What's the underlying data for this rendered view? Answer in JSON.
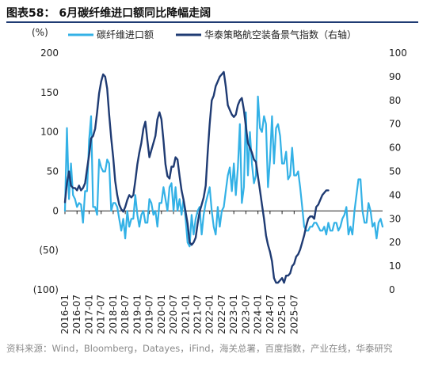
{
  "figure_title": "图表58：  6月碳纤维进口额同比降幅走阔",
  "source_text": "资料来源：Wind，Bloomberg，Datayes，iFind，海关总署，百度指数，产业在线，华泰研究",
  "colors": {
    "series1": "#33b1e6",
    "series2": "#1f3b73",
    "title_rule": "#1f3b73"
  },
  "chart_data": {
    "type": "line",
    "y_left_label": "(%)",
    "y_left_range": [
      -100,
      200
    ],
    "y_left_ticks": [
      "200",
      "150",
      "100",
      "50",
      "0",
      "(50)",
      "(100)"
    ],
    "y_left_tick_values": [
      200,
      150,
      100,
      50,
      0,
      -50,
      -100
    ],
    "y_right_range": [
      0,
      100
    ],
    "y_right_ticks": [
      "100",
      "90",
      "80",
      "70",
      "60",
      "50",
      "40",
      "30",
      "20",
      "10",
      "0"
    ],
    "y_right_tick_values": [
      100,
      90,
      80,
      70,
      60,
      50,
      40,
      30,
      20,
      10,
      0
    ],
    "x_tick_labels": [
      "2016-01",
      "2016-07",
      "2017-01",
      "2017-07",
      "2018-01",
      "2018-07",
      "2019-01",
      "2019-07",
      "2020-01",
      "2020-07",
      "2021-01",
      "2021-07",
      "2022-01",
      "2022-07",
      "2023-01",
      "2023-07",
      "2024-01",
      "2024-07",
      "2025-01",
      "2025-07"
    ],
    "x_start": "2016-01",
    "legend_placement": "top",
    "series": [
      {
        "name": "碳纤维进口额",
        "axis": "left",
        "values": [
          0,
          105,
          15,
          60,
          20,
          15,
          5,
          10,
          8,
          -15,
          25,
          25,
          90,
          120,
          5,
          5,
          -5,
          65,
          55,
          50,
          50,
          65,
          60,
          0,
          10,
          10,
          5,
          -10,
          -25,
          -10,
          -35,
          0,
          -20,
          -10,
          -10,
          20,
          -5,
          -20,
          -5,
          0,
          -15,
          -15,
          15,
          10,
          -5,
          0,
          -20,
          10,
          10,
          30,
          15,
          0,
          30,
          35,
          0,
          30,
          0,
          15,
          -5,
          15,
          -10,
          -40,
          -45,
          -5,
          -30,
          -10,
          0,
          5,
          -30,
          -5,
          10,
          20,
          30,
          0,
          -20,
          -30,
          5,
          -20,
          0,
          5,
          25,
          45,
          55,
          25,
          60,
          20,
          55,
          110,
          10,
          30,
          125,
          45,
          100,
          60,
          35,
          45,
          145,
          105,
          100,
          120,
          110,
          30,
          65,
          120,
          60,
          105,
          110,
          95,
          60,
          60,
          75,
          40,
          45,
          80,
          45,
          45,
          50,
          30,
          5,
          -20,
          -25,
          -25,
          -20,
          -20,
          -15,
          -15,
          -20,
          -25,
          -25,
          -20,
          -30,
          -15,
          -25,
          -25,
          -15,
          -15,
          -25,
          -20,
          -10,
          -5,
          5,
          -30,
          -20,
          -30,
          0,
          20,
          40,
          40,
          0,
          -15,
          -15,
          10,
          0,
          -20,
          -15,
          -35,
          -15,
          -10,
          -20
        ],
        "line_width": 2.2
      },
      {
        "name": "华泰策略航空装备景气指数（右轴）",
        "axis": "right",
        "values": [
          37,
          45,
          50,
          44,
          43,
          43,
          42,
          44,
          42,
          43,
          45,
          51,
          57,
          64,
          65,
          68,
          75,
          83,
          88,
          91,
          90,
          85,
          74,
          64,
          56,
          46,
          40,
          36,
          34,
          33,
          35,
          38,
          40,
          39,
          40,
          46,
          53,
          58,
          62,
          68,
          71,
          63,
          56,
          59,
          62,
          65,
          72,
          75,
          72,
          63,
          53,
          48,
          47,
          52,
          52,
          56,
          55,
          48,
          42,
          38,
          33,
          28,
          20,
          19,
          20,
          22,
          28,
          33,
          36,
          39,
          44,
          58,
          70,
          80,
          82,
          86,
          88,
          90,
          91,
          92,
          86,
          78,
          76,
          74,
          73,
          74,
          78,
          80,
          81,
          76,
          69,
          62,
          60,
          58,
          55,
          54,
          48,
          42,
          36,
          30,
          23,
          19,
          16,
          12,
          5,
          3,
          3,
          4,
          5,
          3,
          6,
          6,
          7,
          10,
          11,
          14,
          15,
          17,
          20,
          23,
          27,
          30,
          31,
          31,
          30,
          35,
          36,
          38,
          40,
          41,
          42,
          42
        ],
        "line_width": 2.4
      }
    ]
  }
}
